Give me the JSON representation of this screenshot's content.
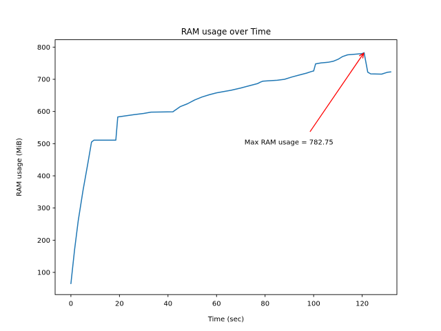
{
  "chart_data": {
    "type": "line",
    "title": "RAM usage over Time",
    "xlabel": "Time (sec)",
    "ylabel": "RAM usage (MiB)",
    "xlim": [
      -6.5,
      134.3
    ],
    "ylim": [
      31,
      823
    ],
    "xticks": [
      0,
      20,
      40,
      60,
      80,
      100,
      120
    ],
    "yticks": [
      100,
      200,
      300,
      400,
      500,
      600,
      700,
      800
    ],
    "grid": false,
    "legend": "none",
    "line_color": "#1f77b4",
    "series": [
      {
        "name": "RAM usage",
        "points": [
          [
            0,
            65
          ],
          [
            1.5,
            170
          ],
          [
            3,
            260
          ],
          [
            5,
            355
          ],
          [
            7,
            440
          ],
          [
            8.5,
            505
          ],
          [
            9.5,
            511
          ],
          [
            18.5,
            511
          ],
          [
            19.3,
            583
          ],
          [
            22,
            586
          ],
          [
            26,
            590
          ],
          [
            30,
            594
          ],
          [
            33,
            598
          ],
          [
            42,
            599
          ],
          [
            45,
            615
          ],
          [
            48,
            624
          ],
          [
            51,
            636
          ],
          [
            54,
            645
          ],
          [
            57,
            652
          ],
          [
            60,
            658
          ],
          [
            63,
            662
          ],
          [
            66,
            666
          ],
          [
            70,
            673
          ],
          [
            74,
            681
          ],
          [
            77,
            687
          ],
          [
            78,
            691
          ],
          [
            79,
            694
          ],
          [
            81,
            695
          ],
          [
            85,
            697
          ],
          [
            88,
            700
          ],
          [
            91,
            707
          ],
          [
            94,
            713
          ],
          [
            97,
            719
          ],
          [
            99,
            724
          ],
          [
            100,
            726
          ],
          [
            100.8,
            748
          ],
          [
            103,
            751
          ],
          [
            106,
            753
          ],
          [
            108,
            756
          ],
          [
            110,
            762
          ],
          [
            112,
            771
          ],
          [
            114,
            776
          ],
          [
            117,
            778
          ],
          [
            120,
            780
          ],
          [
            120.8,
            782.75
          ],
          [
            122.3,
            722
          ],
          [
            123.5,
            717
          ],
          [
            128,
            716
          ],
          [
            130.5,
            722
          ],
          [
            131.8,
            723
          ]
        ]
      }
    ],
    "annotation": {
      "text": "Max RAM usage = 782.75",
      "max_value": 782.75,
      "color": "#ff0000",
      "xy": [
        120.6,
        781
      ],
      "arrow_tail": [
        98.5,
        537
      ],
      "text_pos": [
        71.5,
        498
      ]
    }
  }
}
